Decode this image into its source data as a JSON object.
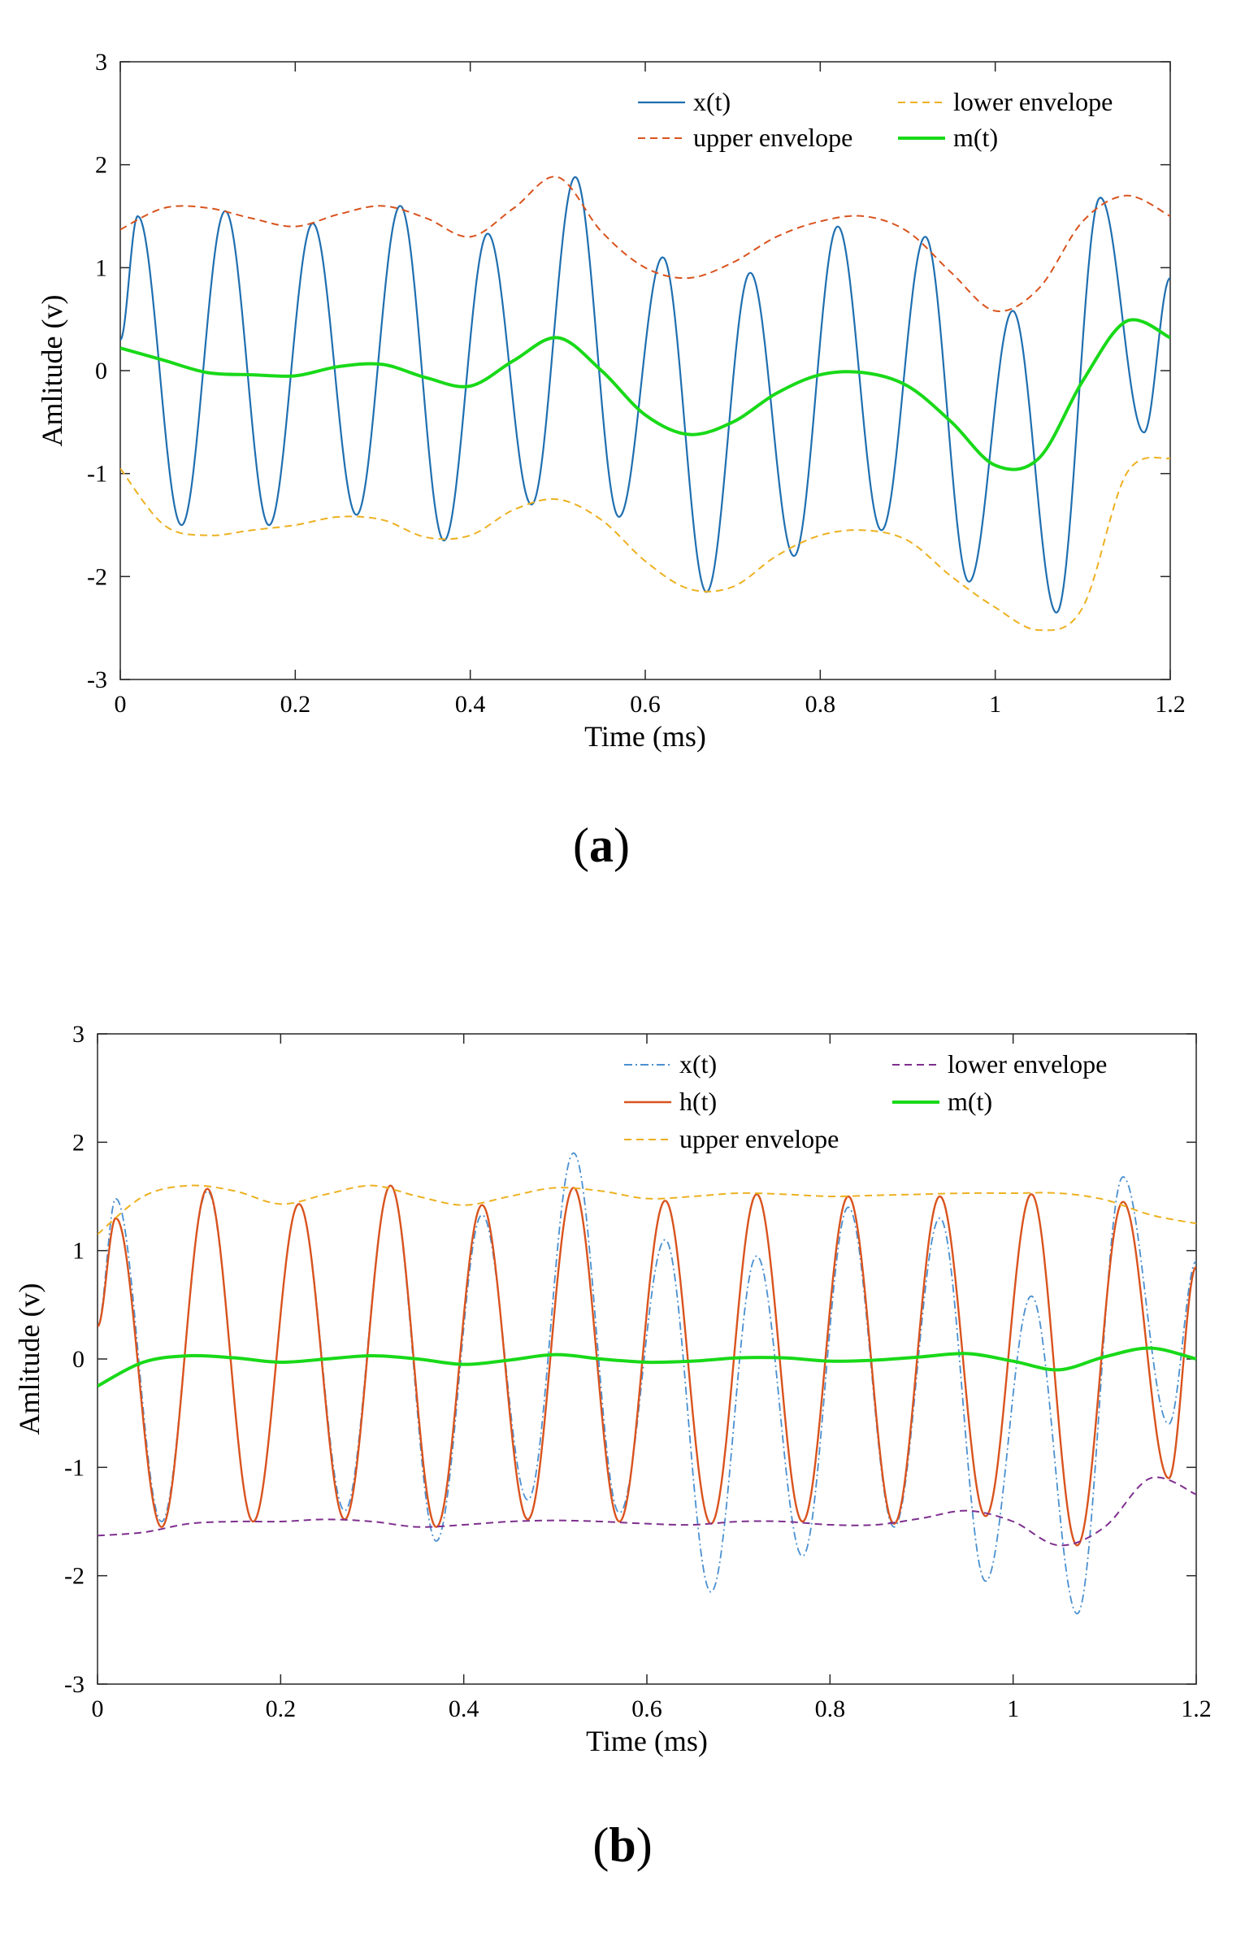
{
  "chart_data": [
    {
      "id": "a",
      "type": "line",
      "panel_label": "a",
      "xlabel": "Time (ms)",
      "ylabel": "Amlitude (v)",
      "xlim": [
        0,
        1.2
      ],
      "ylim": [
        -3,
        3
      ],
      "xticks": [
        "0",
        "0.2",
        "0.4",
        "0.6",
        "0.8",
        "1",
        "1.2"
      ],
      "yticks": [
        "-3",
        "-2",
        "-1",
        "0",
        "1",
        "2",
        "3"
      ],
      "legend_position": "top-right",
      "x": [
        0,
        0.05,
        0.1,
        0.15,
        0.2,
        0.25,
        0.3,
        0.35,
        0.4,
        0.45,
        0.5,
        0.55,
        0.6,
        0.65,
        0.7,
        0.75,
        0.8,
        0.85,
        0.9,
        0.95,
        1.0,
        1.05,
        1.1,
        1.15,
        1.2
      ],
      "series": [
        {
          "name": "x(t)",
          "color": "#1f6fb0",
          "style": "solid",
          "width": 2.2,
          "peaks": [
            [
              0.02,
              1.5
            ],
            [
              0.07,
              -1.5
            ],
            [
              0.12,
              1.55
            ],
            [
              0.17,
              -1.5
            ],
            [
              0.22,
              1.43
            ],
            [
              0.27,
              -1.4
            ],
            [
              0.32,
              1.6
            ],
            [
              0.37,
              -1.65
            ],
            [
              0.42,
              1.33
            ],
            [
              0.47,
              -1.3
            ],
            [
              0.52,
              1.88
            ],
            [
              0.57,
              -1.42
            ],
            [
              0.62,
              1.1
            ],
            [
              0.67,
              -2.15
            ],
            [
              0.72,
              0.95
            ],
            [
              0.77,
              -1.8
            ],
            [
              0.82,
              1.4
            ],
            [
              0.87,
              -1.55
            ],
            [
              0.92,
              1.3
            ],
            [
              0.97,
              -2.05
            ],
            [
              1.02,
              0.58
            ],
            [
              1.07,
              -2.35
            ],
            [
              1.12,
              1.68
            ],
            [
              1.17,
              -0.6
            ]
          ],
          "start": 0.3,
          "end": 0.9
        },
        {
          "name": "upper envelope",
          "color": "#d9531e",
          "style": "dashed",
          "width": 2,
          "values": [
            1.37,
            1.58,
            1.58,
            1.48,
            1.4,
            1.52,
            1.6,
            1.48,
            1.3,
            1.58,
            1.88,
            1.35,
            1.0,
            0.9,
            1.05,
            1.3,
            1.45,
            1.5,
            1.35,
            0.95,
            0.58,
            0.8,
            1.45,
            1.7,
            1.5
          ]
        },
        {
          "name": "lower envelope",
          "color": "#edb120",
          "style": "dashed",
          "width": 2,
          "values": [
            -0.95,
            -1.5,
            -1.6,
            -1.55,
            -1.5,
            -1.42,
            -1.45,
            -1.62,
            -1.6,
            -1.35,
            -1.25,
            -1.45,
            -1.85,
            -2.12,
            -2.1,
            -1.8,
            -1.6,
            -1.55,
            -1.65,
            -2.0,
            -2.3,
            -2.52,
            -2.3,
            -1.0,
            -0.85
          ]
        },
        {
          "name": "m(t)",
          "color": "#19d919",
          "style": "solid",
          "width": 4,
          "values": [
            0.22,
            0.1,
            -0.02,
            -0.04,
            -0.05,
            0.04,
            0.06,
            -0.07,
            -0.15,
            0.1,
            0.32,
            0.0,
            -0.43,
            -0.62,
            -0.5,
            -0.22,
            -0.04,
            -0.02,
            -0.15,
            -0.5,
            -0.92,
            -0.85,
            -0.1,
            0.48,
            0.32
          ]
        }
      ],
      "legend": [
        {
          "series": 0,
          "col": 0,
          "row": 0
        },
        {
          "series": 2,
          "col": 1,
          "row": 0
        },
        {
          "series": 1,
          "col": 0,
          "row": 1
        },
        {
          "series": 3,
          "col": 1,
          "row": 1
        }
      ]
    },
    {
      "id": "b",
      "type": "line",
      "panel_label": "b",
      "xlabel": "Time (ms)",
      "ylabel": "Amlitude (v)",
      "xlim": [
        0,
        1.2
      ],
      "ylim": [
        -3,
        3
      ],
      "xticks": [
        "0",
        "0.2",
        "0.4",
        "0.6",
        "0.8",
        "1",
        "1.2"
      ],
      "yticks": [
        "-3",
        "-2",
        "-1",
        "0",
        "1",
        "2",
        "3"
      ],
      "legend_position": "top-right",
      "x": [
        0,
        0.05,
        0.1,
        0.15,
        0.2,
        0.25,
        0.3,
        0.35,
        0.4,
        0.45,
        0.5,
        0.55,
        0.6,
        0.65,
        0.7,
        0.75,
        0.8,
        0.85,
        0.9,
        0.95,
        1.0,
        1.05,
        1.1,
        1.15,
        1.2
      ],
      "series": [
        {
          "name": "x(t)",
          "color": "#4a90d0",
          "style": "dashdot",
          "width": 1.8,
          "peaks": [
            [
              0.02,
              1.48
            ],
            [
              0.07,
              -1.5
            ],
            [
              0.12,
              1.55
            ],
            [
              0.17,
              -1.5
            ],
            [
              0.22,
              1.43
            ],
            [
              0.27,
              -1.4
            ],
            [
              0.32,
              1.6
            ],
            [
              0.37,
              -1.68
            ],
            [
              0.42,
              1.33
            ],
            [
              0.47,
              -1.3
            ],
            [
              0.52,
              1.9
            ],
            [
              0.57,
              -1.42
            ],
            [
              0.62,
              1.1
            ],
            [
              0.67,
              -2.15
            ],
            [
              0.72,
              0.95
            ],
            [
              0.77,
              -1.82
            ],
            [
              0.82,
              1.4
            ],
            [
              0.87,
              -1.55
            ],
            [
              0.92,
              1.3
            ],
            [
              0.97,
              -2.05
            ],
            [
              1.02,
              0.58
            ],
            [
              1.07,
              -2.35
            ],
            [
              1.12,
              1.68
            ],
            [
              1.17,
              -0.6
            ]
          ],
          "start": 0.3,
          "end": 0.9
        },
        {
          "name": "h(t)",
          "color": "#d9531e",
          "style": "solid",
          "width": 2.4,
          "peaks": [
            [
              0.02,
              1.3
            ],
            [
              0.07,
              -1.55
            ],
            [
              0.12,
              1.57
            ],
            [
              0.17,
              -1.5
            ],
            [
              0.22,
              1.43
            ],
            [
              0.27,
              -1.48
            ],
            [
              0.32,
              1.6
            ],
            [
              0.37,
              -1.55
            ],
            [
              0.42,
              1.42
            ],
            [
              0.47,
              -1.48
            ],
            [
              0.52,
              1.58
            ],
            [
              0.57,
              -1.5
            ],
            [
              0.62,
              1.46
            ],
            [
              0.67,
              -1.52
            ],
            [
              0.72,
              1.52
            ],
            [
              0.77,
              -1.5
            ],
            [
              0.82,
              1.5
            ],
            [
              0.87,
              -1.52
            ],
            [
              0.92,
              1.5
            ],
            [
              0.97,
              -1.45
            ],
            [
              1.02,
              1.52
            ],
            [
              1.07,
              -1.72
            ],
            [
              1.12,
              1.45
            ],
            [
              1.17,
              -1.1
            ]
          ],
          "start": 0.3,
          "end": 0.85
        },
        {
          "name": "upper envelope",
          "color": "#edb120",
          "style": "dashed",
          "width": 2,
          "values": [
            1.15,
            1.5,
            1.6,
            1.55,
            1.43,
            1.52,
            1.6,
            1.5,
            1.42,
            1.5,
            1.58,
            1.55,
            1.48,
            1.5,
            1.53,
            1.52,
            1.5,
            1.51,
            1.52,
            1.53,
            1.53,
            1.53,
            1.47,
            1.33,
            1.25
          ]
        },
        {
          "name": "lower envelope",
          "color": "#7e2f8e",
          "style": "dashed",
          "width": 2,
          "values": [
            -1.63,
            -1.6,
            -1.52,
            -1.5,
            -1.5,
            -1.48,
            -1.5,
            -1.55,
            -1.53,
            -1.5,
            -1.49,
            -1.5,
            -1.52,
            -1.53,
            -1.5,
            -1.5,
            -1.53,
            -1.53,
            -1.47,
            -1.4,
            -1.5,
            -1.72,
            -1.55,
            -1.1,
            -1.25
          ]
        },
        {
          "name": "m(t)",
          "color": "#19d919",
          "style": "solid",
          "width": 4,
          "values": [
            -0.25,
            -0.03,
            0.03,
            0.01,
            -0.03,
            0.0,
            0.03,
            0.0,
            -0.05,
            -0.01,
            0.04,
            0.0,
            -0.03,
            -0.02,
            0.01,
            0.01,
            -0.02,
            -0.01,
            0.02,
            0.05,
            -0.02,
            -0.1,
            0.02,
            0.1,
            0.0
          ]
        }
      ],
      "legend": [
        {
          "series": 0,
          "col": 0,
          "row": 0
        },
        {
          "series": 3,
          "col": 1,
          "row": 0
        },
        {
          "series": 1,
          "col": 0,
          "row": 1
        },
        {
          "series": 4,
          "col": 1,
          "row": 1
        },
        {
          "series": 2,
          "col": 0,
          "row": 2
        }
      ]
    }
  ]
}
